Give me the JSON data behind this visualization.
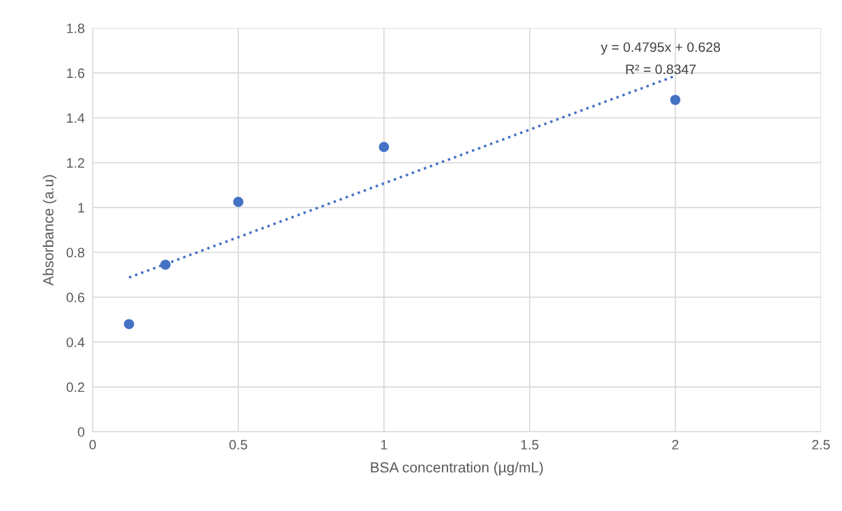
{
  "chart_data": {
    "type": "scatter",
    "xlabel": "BSA concentration (µg/mL)",
    "ylabel": "Absorbance (a.u)",
    "x": [
      0.125,
      0.25,
      0.5,
      1,
      2
    ],
    "series": [
      {
        "color": "#4472c4",
        "marker": "circle",
        "values": [
          0.48,
          0.745,
          1.025,
          1.27,
          1.48
        ]
      },
      {
        "type": "line",
        "color": "#4472c4",
        "line_style": "dotted",
        "marker": "none",
        "x": [
          0.125,
          2
        ],
        "values": [
          0.688,
          1.587
        ]
      }
    ],
    "annotations": [
      "y = 0.4795x + 0.628",
      "R² = 0.8347"
    ],
    "xlim": [
      0,
      2.5
    ],
    "xticks": [
      0,
      0.5,
      1,
      1.5,
      2,
      2.5
    ],
    "ylim": [
      0,
      1.8
    ],
    "yticks": [
      0,
      0.2,
      0.4,
      0.6,
      0.8,
      1,
      1.2,
      1.4,
      1.6,
      1.8
    ],
    "grid": true,
    "legend": false
  }
}
